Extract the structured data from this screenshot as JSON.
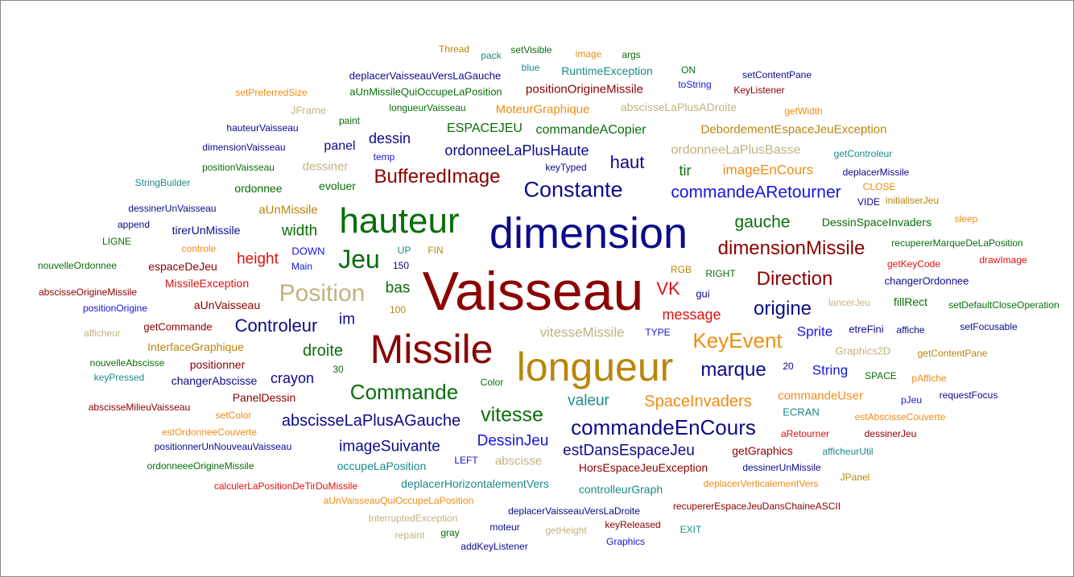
{
  "palette": {
    "navy": "#0b0b8a",
    "darkred": "#8b0000",
    "green": "#0a6e0a",
    "orange": "#f08c14",
    "goldbrown": "#b8860b",
    "khaki": "#c2b280",
    "red": "#e01010",
    "teal": "#1b8a8a",
    "blue": "#1515dd"
  },
  "words": [
    {
      "text": "Vaisseau",
      "color": "darkred"
    },
    {
      "text": "dimension",
      "color": "navy"
    },
    {
      "text": "Missile",
      "color": "darkred"
    },
    {
      "text": "longueur",
      "color": "goldbrown"
    },
    {
      "text": "hauteur",
      "color": "green"
    },
    {
      "text": "Jeu",
      "color": "green"
    },
    {
      "text": "Position",
      "color": "khaki"
    },
    {
      "text": "Constante",
      "color": "navy"
    },
    {
      "text": "Commande",
      "color": "green"
    },
    {
      "text": "KeyEvent",
      "color": "orange"
    },
    {
      "text": "commandeEnCours",
      "color": "navy"
    },
    {
      "text": "vitesse",
      "color": "green"
    },
    {
      "text": "BufferedImage",
      "color": "darkred"
    },
    {
      "text": "dimensionMissile",
      "color": "darkred"
    },
    {
      "text": "Direction",
      "color": "darkred"
    },
    {
      "text": "origine",
      "color": "navy"
    },
    {
      "text": "marque",
      "color": "navy"
    },
    {
      "text": "Controleur",
      "color": "navy"
    },
    {
      "text": "commandeARetourner",
      "color": "blue"
    },
    {
      "text": "VK",
      "color": "red"
    },
    {
      "text": "SpaceInvaders",
      "color": "orange"
    },
    {
      "text": "abscisseLaPlusAGauche",
      "color": "navy"
    },
    {
      "text": "estDansEspaceJeu",
      "color": "navy"
    },
    {
      "text": "ordonneeLaPlusHaute",
      "color": "navy"
    },
    {
      "text": "haut",
      "color": "navy"
    },
    {
      "text": "gauche",
      "color": "green"
    },
    {
      "text": "droite",
      "color": "green"
    },
    {
      "text": "imageSuivante",
      "color": "navy"
    },
    {
      "text": "DessinJeu",
      "color": "blue"
    },
    {
      "text": "width",
      "color": "green"
    },
    {
      "text": "height",
      "color": "red"
    },
    {
      "text": "bas",
      "color": "green"
    },
    {
      "text": "im",
      "color": "navy"
    },
    {
      "text": "crayon",
      "color": "navy"
    },
    {
      "text": "valeur",
      "color": "teal"
    },
    {
      "text": "vitesseMissile",
      "color": "khaki"
    },
    {
      "text": "message",
      "color": "red"
    },
    {
      "text": "Sprite",
      "color": "blue"
    },
    {
      "text": "String",
      "color": "blue"
    },
    {
      "text": "imageEnCours",
      "color": "orange"
    },
    {
      "text": "ordonneeLaPlusBasse",
      "color": "khaki"
    },
    {
      "text": "tir",
      "color": "green"
    },
    {
      "text": "dessin",
      "color": "navy"
    },
    {
      "text": "panel",
      "color": "navy"
    },
    {
      "text": "ESPACEJEU",
      "color": "green"
    },
    {
      "text": "commandeACopier",
      "color": "green"
    },
    {
      "text": "DebordementEspaceJeuException",
      "color": "goldbrown"
    },
    {
      "text": "positionOrigineMissile",
      "color": "darkred"
    },
    {
      "text": "RuntimeException",
      "color": "teal"
    },
    {
      "text": "MoteurGraphique",
      "color": "orange"
    },
    {
      "text": "abscisseLaPlusADroite",
      "color": "khaki"
    },
    {
      "text": "aUnMissile",
      "color": "goldbrown"
    },
    {
      "text": "tirerUnMissile",
      "color": "navy"
    },
    {
      "text": "espaceDeJeu",
      "color": "darkred"
    },
    {
      "text": "MissileException",
      "color": "red"
    },
    {
      "text": "aUnVaisseau",
      "color": "darkred"
    },
    {
      "text": "getCommande",
      "color": "darkred"
    },
    {
      "text": "InterfaceGraphique",
      "color": "goldbrown"
    },
    {
      "text": "positionner",
      "color": "darkred"
    },
    {
      "text": "changerAbscisse",
      "color": "navy"
    },
    {
      "text": "PanelDessin",
      "color": "darkred"
    },
    {
      "text": "commandeUser",
      "color": "orange"
    },
    {
      "text": "DessinSpaceInvaders",
      "color": "green"
    },
    {
      "text": "fillRect",
      "color": "green"
    },
    {
      "text": "etreFini",
      "color": "navy"
    },
    {
      "text": "abscisse",
      "color": "khaki"
    },
    {
      "text": "occupeLaPosition",
      "color": "teal"
    },
    {
      "text": "deplacerHorizontalementVers",
      "color": "teal"
    },
    {
      "text": "controlleurGraph",
      "color": "teal"
    },
    {
      "text": "getGraphics",
      "color": "darkred"
    },
    {
      "text": "HorsEspaceJeuException",
      "color": "darkred"
    },
    {
      "text": "dessiner",
      "color": "khaki"
    },
    {
      "text": "evoluer",
      "color": "green"
    },
    {
      "text": "ordonnee",
      "color": "green"
    },
    {
      "text": "Thread",
      "color": "goldbrown"
    },
    {
      "text": "pack",
      "color": "teal"
    },
    {
      "text": "setVisible",
      "color": "green"
    },
    {
      "text": "image",
      "color": "orange"
    },
    {
      "text": "args",
      "color": "green"
    },
    {
      "text": "blue",
      "color": "teal"
    },
    {
      "text": "ON",
      "color": "green"
    },
    {
      "text": "deplacerVaisseauVersLaGauche",
      "color": "navy"
    },
    {
      "text": "setContentPane",
      "color": "navy"
    },
    {
      "text": "toString",
      "color": "blue"
    },
    {
      "text": "aUnMissileQuiOccupeLaPosition",
      "color": "green"
    },
    {
      "text": "KeyListener",
      "color": "darkred"
    },
    {
      "text": "setPreferredSize",
      "color": "orange"
    },
    {
      "text": "longueurVaisseau",
      "color": "green"
    },
    {
      "text": "JFrame",
      "color": "khaki"
    },
    {
      "text": "getWidth",
      "color": "orange"
    },
    {
      "text": "paint",
      "color": "green"
    },
    {
      "text": "hauteurVaisseau",
      "color": "navy"
    },
    {
      "text": "dimensionVaisseau",
      "color": "navy"
    },
    {
      "text": "temp",
      "color": "blue"
    },
    {
      "text": "getControleur",
      "color": "teal"
    },
    {
      "text": "positionVaisseau",
      "color": "green"
    },
    {
      "text": "keyTyped",
      "color": "navy"
    },
    {
      "text": "deplacerMissile",
      "color": "navy"
    },
    {
      "text": "StringBuilder",
      "color": "teal"
    },
    {
      "text": "CLOSE",
      "color": "orange"
    },
    {
      "text": "VIDE",
      "color": "navy"
    },
    {
      "text": "initialiserJeu",
      "color": "goldbrown"
    },
    {
      "text": "dessinerUnVaisseau",
      "color": "navy"
    },
    {
      "text": "append",
      "color": "navy"
    },
    {
      "text": "sleep",
      "color": "orange"
    },
    {
      "text": "LIGNE",
      "color": "green"
    },
    {
      "text": "controle",
      "color": "orange"
    },
    {
      "text": "DOWN",
      "color": "blue"
    },
    {
      "text": "UP",
      "color": "teal"
    },
    {
      "text": "FIN",
      "color": "goldbrown"
    },
    {
      "text": "recupererMarqueDeLaPosition",
      "color": "green"
    },
    {
      "text": "nouvelleOrdonnee",
      "color": "green"
    },
    {
      "text": "Main",
      "color": "blue"
    },
    {
      "text": "150",
      "color": "navy"
    },
    {
      "text": "getKeyCode",
      "color": "red"
    },
    {
      "text": "drawImage",
      "color": "red"
    },
    {
      "text": "RGB",
      "color": "goldbrown"
    },
    {
      "text": "RIGHT",
      "color": "green"
    },
    {
      "text": "changerOrdonnee",
      "color": "navy"
    },
    {
      "text": "abscisseOrigineMissile",
      "color": "darkred"
    },
    {
      "text": "gui",
      "color": "navy"
    },
    {
      "text": "lancerJeu",
      "color": "khaki"
    },
    {
      "text": "positionOrigine",
      "color": "blue"
    },
    {
      "text": "100",
      "color": "goldbrown"
    },
    {
      "text": "setDefaultCloseOperation",
      "color": "green"
    },
    {
      "text": "afficheur",
      "color": "khaki"
    },
    {
      "text": "TYPE",
      "color": "blue"
    },
    {
      "text": "affiche",
      "color": "navy"
    },
    {
      "text": "setFocusable",
      "color": "navy"
    },
    {
      "text": "Graphics2D",
      "color": "khaki"
    },
    {
      "text": "nouvelleAbscisse",
      "color": "green"
    },
    {
      "text": "20",
      "color": "navy"
    },
    {
      "text": "getContentPane",
      "color": "goldbrown"
    },
    {
      "text": "keyPressed",
      "color": "teal"
    },
    {
      "text": "30",
      "color": "green"
    },
    {
      "text": "SPACE",
      "color": "green"
    },
    {
      "text": "pAffiche",
      "color": "orange"
    },
    {
      "text": "Color",
      "color": "green"
    },
    {
      "text": "abscisseMilieuVaisseau",
      "color": "darkred"
    },
    {
      "text": "requestFocus",
      "color": "navy"
    },
    {
      "text": "pJeu",
      "color": "blue"
    },
    {
      "text": "setColor",
      "color": "orange"
    },
    {
      "text": "ECRAN",
      "color": "teal"
    },
    {
      "text": "estAbscisseCouverte",
      "color": "orange"
    },
    {
      "text": "estOrdonneeCouverte",
      "color": "orange"
    },
    {
      "text": "dessinerJeu",
      "color": "darkred"
    },
    {
      "text": "aRetourner",
      "color": "red"
    },
    {
      "text": "positionnerUnNouveauVaisseau",
      "color": "navy"
    },
    {
      "text": "afficheurUtil",
      "color": "teal"
    },
    {
      "text": "LEFT",
      "color": "blue"
    },
    {
      "text": "ordonneeeOrigineMissile",
      "color": "green"
    },
    {
      "text": "dessinerUnMissile",
      "color": "navy"
    },
    {
      "text": "JPanel",
      "color": "goldbrown"
    },
    {
      "text": "calculerLaPositionDeTirDuMissile",
      "color": "red"
    },
    {
      "text": "deplacerVerticalementVers",
      "color": "orange"
    },
    {
      "text": "aUnVaisseauQuiOccupeLaPosition",
      "color": "orange"
    },
    {
      "text": "recupererEspaceJeuDansChaineASCII",
      "color": "darkred"
    },
    {
      "text": "deplacerVaisseauVersLaDroite",
      "color": "navy"
    },
    {
      "text": "InterruptedException",
      "color": "khaki"
    },
    {
      "text": "keyReleased",
      "color": "darkred"
    },
    {
      "text": "repaint",
      "color": "khaki"
    },
    {
      "text": "gray",
      "color": "green"
    },
    {
      "text": "moteur",
      "color": "navy"
    },
    {
      "text": "getHeight",
      "color": "khaki"
    },
    {
      "text": "EXIT",
      "color": "teal"
    },
    {
      "text": "addKeyListener",
      "color": "navy"
    },
    {
      "text": "Graphics",
      "color": "blue"
    }
  ]
}
